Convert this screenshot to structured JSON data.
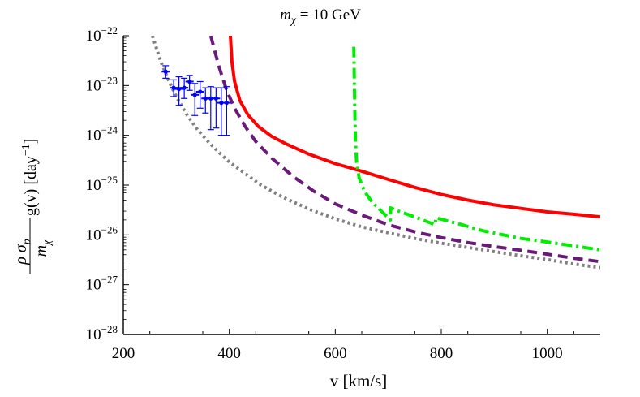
{
  "chart_data": {
    "type": "line",
    "title": "m_χ = 10 GeV",
    "title_parts": {
      "symbol": "m",
      "subscript": "χ",
      "rest": " = 10 GeV"
    },
    "xlabel": "v [km/s]",
    "ylabel": "ρ σ_p g(v) / m_χ [day^-1]",
    "ylabel_parts": {
      "rho": "ρ",
      "sigma": "σ",
      "sub_p": "p",
      "m": "m",
      "sub_chi": "χ",
      "gv": "g(v) [day",
      "exp": "−1",
      "close": "]"
    },
    "x_scale": "linear",
    "y_scale": "log",
    "xlim": [
      200,
      1100
    ],
    "ylim": [
      1e-28,
      1e-22
    ],
    "x_ticks": [
      200,
      400,
      600,
      800,
      1000
    ],
    "x_tick_labels": [
      "200",
      "400",
      "600",
      "800",
      "1000"
    ],
    "y_ticks": [
      -28,
      -27,
      -26,
      -25,
      -24,
      -23,
      -22
    ],
    "y_tick_base": "10",
    "y_tick_exponents": [
      "−28",
      "−27",
      "−26",
      "−25",
      "−24",
      "−23",
      "−22"
    ],
    "grid": false,
    "series": [
      {
        "name": "gray-dotted",
        "color": "#808080",
        "style": "dotted",
        "points": [
          [
            255,
            1e-22
          ],
          [
            270,
            3.2e-23
          ],
          [
            285,
            1.3e-23
          ],
          [
            300,
            6e-24
          ],
          [
            320,
            2.6e-24
          ],
          [
            340,
            1.3e-24
          ],
          [
            360,
            7.5e-25
          ],
          [
            380,
            4.6e-25
          ],
          [
            400,
            2.9e-25
          ],
          [
            430,
            1.7e-25
          ],
          [
            460,
            1e-25
          ],
          [
            500,
            5.8e-26
          ],
          [
            550,
            3.3e-26
          ],
          [
            600,
            2.1e-26
          ],
          [
            650,
            1.45e-26
          ],
          [
            700,
            1.1e-26
          ],
          [
            750,
            8.5e-27
          ],
          [
            800,
            6.8e-27
          ],
          [
            850,
            5.6e-27
          ],
          [
            900,
            4.6e-27
          ],
          [
            950,
            3.8e-27
          ],
          [
            1000,
            3.2e-27
          ],
          [
            1050,
            2.6e-27
          ],
          [
            1100,
            2.2e-27
          ]
        ]
      },
      {
        "name": "purple-dashed",
        "color": "#6a1b7a",
        "style": "dashed",
        "points": [
          [
            365,
            1e-22
          ],
          [
            380,
            2.5e-23
          ],
          [
            395,
            8e-24
          ],
          [
            410,
            3.5e-24
          ],
          [
            430,
            1.5e-24
          ],
          [
            450,
            7.5e-25
          ],
          [
            480,
            3.5e-25
          ],
          [
            520,
            1.5e-25
          ],
          [
            560,
            7.5e-26
          ],
          [
            600,
            4.2e-26
          ],
          [
            650,
            2.5e-26
          ],
          [
            700,
            1.6e-26
          ],
          [
            750,
            1.15e-26
          ],
          [
            800,
            8.8e-27
          ],
          [
            850,
            7e-27
          ],
          [
            900,
            5.8e-27
          ],
          [
            950,
            4.9e-27
          ],
          [
            1000,
            4.1e-27
          ],
          [
            1050,
            3.4e-27
          ],
          [
            1100,
            2.9e-27
          ]
        ]
      },
      {
        "name": "red-solid",
        "color": "#ff0000",
        "style": "solid",
        "points": [
          [
            402,
            1e-22
          ],
          [
            405,
            3e-23
          ],
          [
            410,
            1.2e-23
          ],
          [
            420,
            5e-24
          ],
          [
            435,
            2.6e-24
          ],
          [
            455,
            1.5e-24
          ],
          [
            480,
            9.5e-25
          ],
          [
            510,
            6.5e-25
          ],
          [
            550,
            4.2e-25
          ],
          [
            600,
            2.7e-25
          ],
          [
            650,
            1.9e-25
          ],
          [
            700,
            1.3e-25
          ],
          [
            750,
            9e-26
          ],
          [
            800,
            6.5e-26
          ],
          [
            850,
            5e-26
          ],
          [
            900,
            4e-26
          ],
          [
            950,
            3.4e-26
          ],
          [
            1000,
            2.9e-26
          ],
          [
            1050,
            2.6e-26
          ],
          [
            1100,
            2.3e-26
          ]
        ]
      },
      {
        "name": "green-dashdot",
        "color": "#00ee00",
        "style": "dashdot",
        "points": [
          [
            635,
            6e-23
          ],
          [
            636,
            1e-23
          ],
          [
            637,
            2.5e-24
          ],
          [
            638,
            8e-25
          ],
          [
            640,
            3e-25
          ],
          [
            645,
            1.4e-25
          ],
          [
            655,
            7.5e-26
          ],
          [
            670,
            4.5e-26
          ],
          [
            690,
            2.8e-26
          ],
          [
            704,
            2e-26
          ],
          [
            704,
            3.5e-26
          ],
          [
            720,
            3e-26
          ],
          [
            760,
            2.1e-26
          ],
          [
            788,
            1.6e-26
          ],
          [
            790,
            2.2e-26
          ],
          [
            830,
            1.7e-26
          ],
          [
            880,
            1.2e-26
          ],
          [
            950,
            8.5e-27
          ],
          [
            1000,
            7.2e-27
          ],
          [
            1050,
            6e-27
          ],
          [
            1100,
            5e-27
          ]
        ]
      }
    ],
    "error_points": {
      "name": "data",
      "color": "#0000ff",
      "points": [
        {
          "x": 280,
          "y": 1.9e-23,
          "lo": 1.4e-23,
          "hi": 2.5e-23
        },
        {
          "x": 295,
          "y": 9e-24,
          "lo": 6e-24,
          "hi": 1.3e-23
        },
        {
          "x": 305,
          "y": 8.5e-24,
          "lo": 4e-24,
          "hi": 1.5e-23
        },
        {
          "x": 315,
          "y": 9e-24,
          "lo": 5.5e-24,
          "hi": 1.4e-23
        },
        {
          "x": 325,
          "y": 1.2e-23,
          "lo": 8e-24,
          "hi": 1.6e-23
        },
        {
          "x": 335,
          "y": 6.5e-24,
          "lo": 2.5e-24,
          "hi": 1.1e-23
        },
        {
          "x": 345,
          "y": 7.5e-24,
          "lo": 3.5e-24,
          "hi": 1.2e-23
        },
        {
          "x": 355,
          "y": 5.5e-24,
          "lo": 2.8e-24,
          "hi": 9e-24
        },
        {
          "x": 365,
          "y": 5.5e-24,
          "lo": 1.3e-24,
          "hi": 9.5e-24
        },
        {
          "x": 375,
          "y": 5.5e-24,
          "lo": 1.4e-24,
          "hi": 9e-24
        },
        {
          "x": 385,
          "y": 4.5e-24,
          "lo": 1e-24,
          "hi": 9e-24
        },
        {
          "x": 395,
          "y": 4.5e-24,
          "lo": 1e-24,
          "hi": 9.5e-24
        }
      ]
    }
  }
}
